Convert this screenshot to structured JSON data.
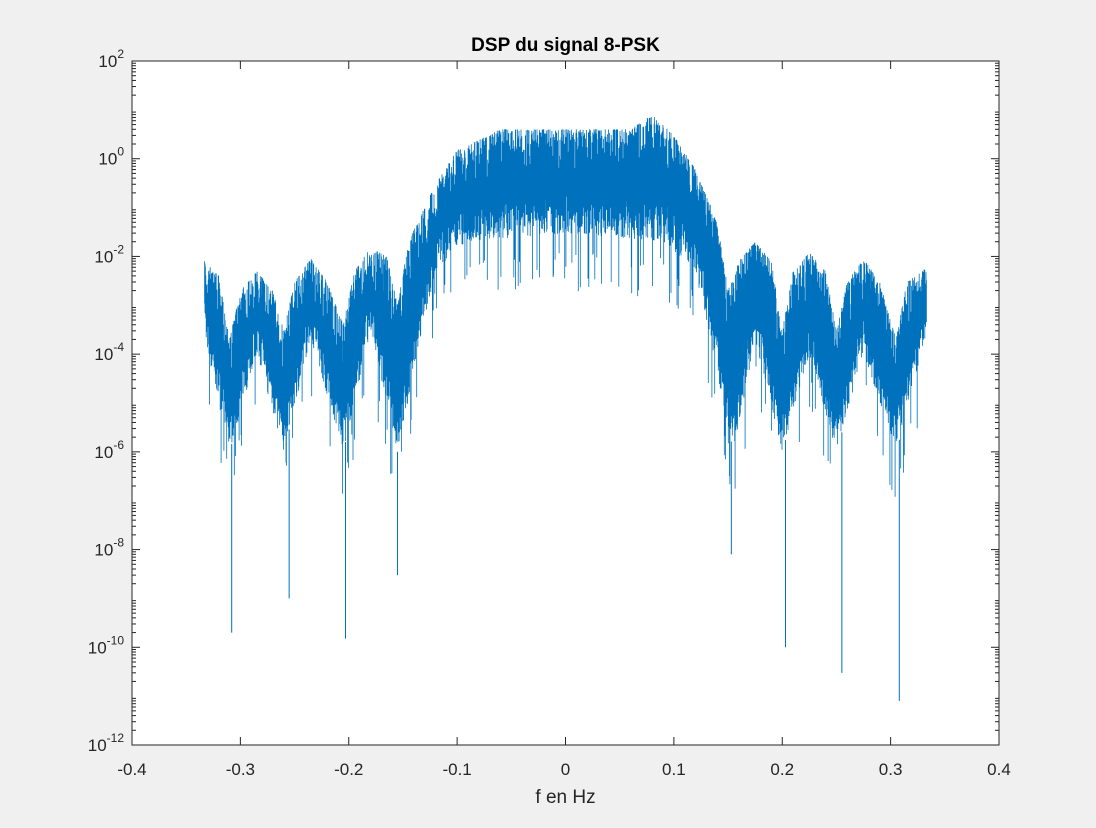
{
  "chart_data": {
    "type": "line",
    "title": "DSP du signal 8-PSK",
    "xlabel": "f en Hz",
    "ylabel": "",
    "xlim": [
      -0.4,
      0.4
    ],
    "ylim": [
      1e-12,
      100
    ],
    "yscale": "log",
    "grid": false,
    "x_ticks": [
      -0.4,
      -0.3,
      -0.2,
      -0.1,
      0,
      0.1,
      0.2,
      0.3,
      0.4
    ],
    "x_tick_labels": [
      "-0.4",
      "-0.3",
      "-0.2",
      "-0.1",
      "0",
      "0.1",
      "0.2",
      "0.3",
      "0.4"
    ],
    "y_ticks": [
      {
        "value": 100.0,
        "base": "10",
        "exp": "2"
      },
      {
        "value": 1.0,
        "base": "10",
        "exp": "0"
      },
      {
        "value": 0.01,
        "base": "10",
        "exp": "-2"
      },
      {
        "value": 0.0001,
        "base": "10",
        "exp": "-4"
      },
      {
        "value": 1e-06,
        "base": "10",
        "exp": "-6"
      },
      {
        "value": 1e-08,
        "base": "10",
        "exp": "-8"
      },
      {
        "value": 1e-10,
        "base": "10",
        "exp": "-10"
      },
      {
        "value": 1e-12,
        "base": "10",
        "exp": "-12"
      }
    ],
    "series": [
      {
        "color": "#0072bd",
        "x_range": [
          -0.333,
          0.333
        ],
        "envelope_upper": [
          [
            -0.333,
            0.008
          ],
          [
            -0.32,
            0.004
          ],
          [
            -0.31,
            0.0002
          ],
          [
            -0.3,
            0.002
          ],
          [
            -0.285,
            0.005
          ],
          [
            -0.27,
            0.002
          ],
          [
            -0.26,
            0.0003
          ],
          [
            -0.25,
            0.003
          ],
          [
            -0.235,
            0.009
          ],
          [
            -0.22,
            0.003
          ],
          [
            -0.205,
            0.0004
          ],
          [
            -0.195,
            0.005
          ],
          [
            -0.18,
            0.015
          ],
          [
            -0.165,
            0.01
          ],
          [
            -0.155,
            0.001
          ],
          [
            -0.145,
            0.02
          ],
          [
            -0.12,
            0.3
          ],
          [
            -0.1,
            1.5
          ],
          [
            -0.06,
            4
          ],
          [
            0,
            4
          ],
          [
            0.06,
            4
          ],
          [
            0.08,
            8
          ],
          [
            0.1,
            3
          ],
          [
            0.12,
            0.6
          ],
          [
            0.14,
            0.05
          ],
          [
            0.15,
            0.002
          ],
          [
            0.16,
            0.008
          ],
          [
            0.175,
            0.02
          ],
          [
            0.19,
            0.008
          ],
          [
            0.2,
            0.0003
          ],
          [
            0.21,
            0.005
          ],
          [
            0.225,
            0.012
          ],
          [
            0.24,
            0.005
          ],
          [
            0.25,
            0.0003
          ],
          [
            0.26,
            0.003
          ],
          [
            0.275,
            0.009
          ],
          [
            0.29,
            0.003
          ],
          [
            0.305,
            0.0002
          ],
          [
            0.315,
            0.003
          ],
          [
            0.333,
            0.006
          ]
        ],
        "envelope_lower": [
          [
            -0.333,
            0.0002
          ],
          [
            -0.31,
            1e-06
          ],
          [
            -0.285,
            0.0001
          ],
          [
            -0.26,
            1e-06
          ],
          [
            -0.235,
            0.0002
          ],
          [
            -0.205,
            1e-06
          ],
          [
            -0.18,
            0.0003
          ],
          [
            -0.155,
            1e-06
          ],
          [
            -0.12,
            0.005
          ],
          [
            -0.09,
            0.02
          ],
          [
            0,
            0.03
          ],
          [
            0.09,
            0.02
          ],
          [
            0.12,
            0.005
          ],
          [
            0.155,
            1e-06
          ],
          [
            0.175,
            0.0002
          ],
          [
            0.2,
            1e-06
          ],
          [
            0.225,
            0.0001
          ],
          [
            0.25,
            1e-06
          ],
          [
            0.275,
            0.0001
          ],
          [
            0.305,
            1e-06
          ],
          [
            0.333,
            0.0002
          ]
        ],
        "deep_nulls": [
          {
            "x": -0.308,
            "y": 2e-10
          },
          {
            "x": -0.255,
            "y": 1e-09
          },
          {
            "x": -0.203,
            "y": 1.5e-10
          },
          {
            "x": -0.155,
            "y": 3e-09
          },
          {
            "x": 0.153,
            "y": 8e-09
          },
          {
            "x": 0.203,
            "y": 1e-10
          },
          {
            "x": 0.255,
            "y": 3e-11
          },
          {
            "x": 0.308,
            "y": 8e-12
          }
        ]
      }
    ]
  }
}
